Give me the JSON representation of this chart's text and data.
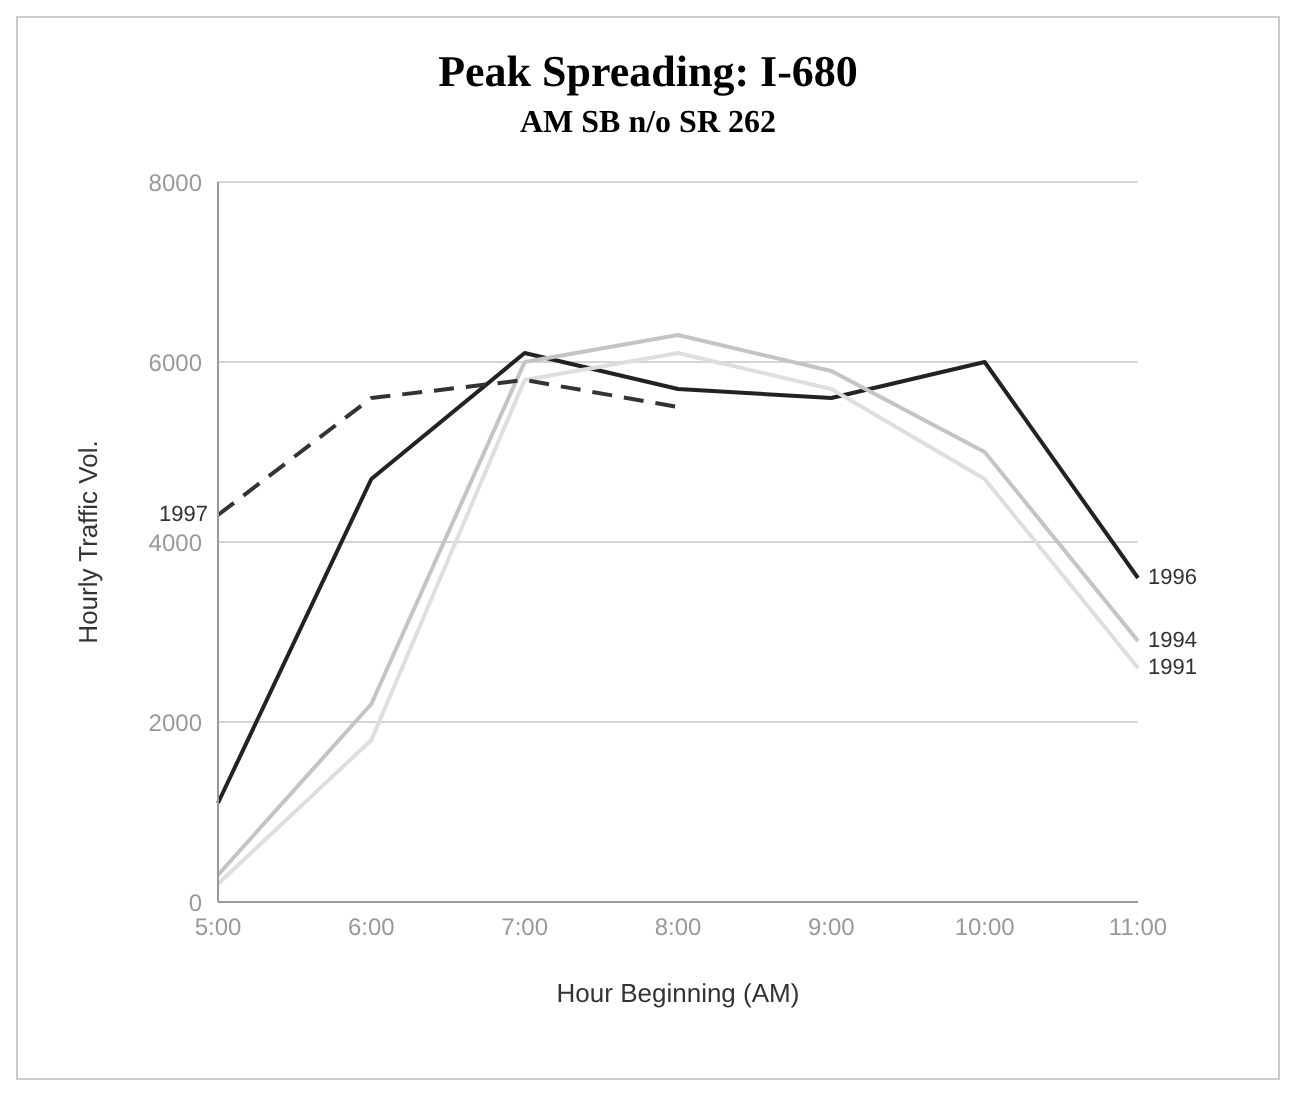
{
  "chart_data": {
    "type": "line",
    "title": "Peak Spreading: I-680",
    "subtitle": "AM SB n/o SR 262",
    "xlabel": "Hour Beginning (AM)",
    "ylabel": "Hourly Traffic Vol.",
    "categories": [
      "5:00",
      "6:00",
      "7:00",
      "8:00",
      "9:00",
      "10:00",
      "11:00"
    ],
    "series": [
      {
        "name": "1996",
        "color": "#222222",
        "line_style": "solid",
        "values": [
          1100,
          4700,
          6100,
          5700,
          5600,
          6000,
          3600
        ]
      },
      {
        "name": "1994",
        "color": "#c4c4c4",
        "line_style": "solid",
        "values": [
          300,
          2200,
          6000,
          6300,
          5900,
          5000,
          2900
        ]
      },
      {
        "name": "1991",
        "color": "#dedede",
        "line_style": "solid",
        "values": [
          200,
          1800,
          5800,
          6100,
          5700,
          4700,
          2600
        ]
      },
      {
        "name": "1997",
        "color": "#333333",
        "line_style": "dashed",
        "values": [
          4300,
          5600,
          5800,
          5500,
          null,
          null,
          null
        ]
      }
    ],
    "ylim": [
      0,
      8000
    ],
    "yticks": [
      0,
      2000,
      4000,
      6000,
      8000
    ],
    "grid": "y",
    "legend": false,
    "marker": "none"
  }
}
